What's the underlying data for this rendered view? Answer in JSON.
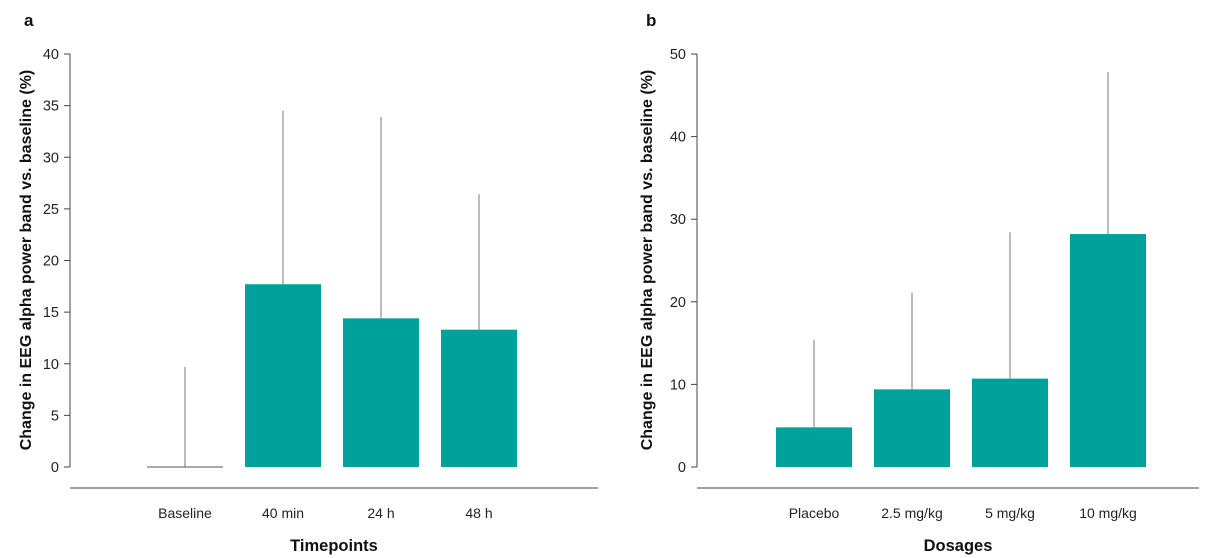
{
  "chart_data": [
    {
      "panel": "a",
      "type": "bar",
      "xlabel": "Timepoints",
      "ylabel": "Change in EEG alpha power band vs. baseline (%)",
      "categories": [
        "Baseline",
        "40 min",
        "24 h",
        "48 h"
      ],
      "values": [
        0,
        17.7,
        14.4,
        13.3
      ],
      "error_upper": [
        9.7,
        34.5,
        33.9,
        26.4
      ],
      "ylim": [
        0,
        40
      ],
      "yticks": [
        0,
        5,
        10,
        15,
        20,
        25,
        30,
        35,
        40
      ],
      "bar_color": "#00A19A",
      "grid": false
    },
    {
      "panel": "b",
      "type": "bar",
      "xlabel": "Dosages",
      "ylabel": "Change in EEG alpha power band vs. baseline (%)",
      "categories": [
        "Placebo",
        "2.5 mg/kg",
        "5 mg/kg",
        "10 mg/kg"
      ],
      "values": [
        4.8,
        9.4,
        10.7,
        28.2
      ],
      "error_upper": [
        15.4,
        21.1,
        28.4,
        47.8
      ],
      "ylim": [
        0,
        50
      ],
      "yticks": [
        0,
        10,
        20,
        30,
        40,
        50
      ],
      "bar_color": "#00A19A",
      "grid": false
    }
  ]
}
